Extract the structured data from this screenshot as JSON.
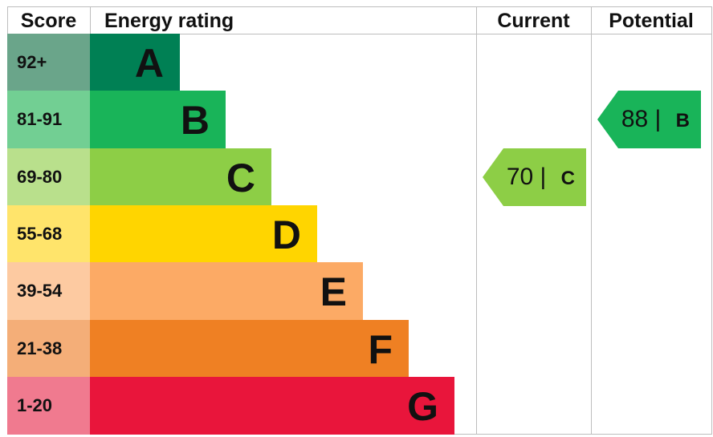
{
  "chart_data": {
    "type": "table",
    "headers": {
      "score": "Score",
      "rating": "Energy rating",
      "current": "Current",
      "potential": "Potential"
    },
    "bands": [
      {
        "score": "92+",
        "letter": "A",
        "color": "#008054",
        "light": "#6aa58a"
      },
      {
        "score": "81-91",
        "letter": "B",
        "color": "#19b459",
        "light": "#72cf93"
      },
      {
        "score": "69-80",
        "letter": "C",
        "color": "#8dce46",
        "light": "#b9e08c"
      },
      {
        "score": "55-68",
        "letter": "D",
        "color": "#ffd500",
        "light": "#ffe46b"
      },
      {
        "score": "39-54",
        "letter": "E",
        "color": "#fcaa65",
        "light": "#fdcaa1"
      },
      {
        "score": "21-38",
        "letter": "F",
        "color": "#ef8023",
        "light": "#f4ae78"
      },
      {
        "score": "1-20",
        "letter": "G",
        "color": "#e9153b",
        "light": "#f07a8f"
      }
    ],
    "current": {
      "value": "70",
      "letter": "C",
      "band_index": 2,
      "color": "#8dce46"
    },
    "potential": {
      "value": "88",
      "letter": "B",
      "band_index": 1,
      "color": "#19b459"
    }
  }
}
